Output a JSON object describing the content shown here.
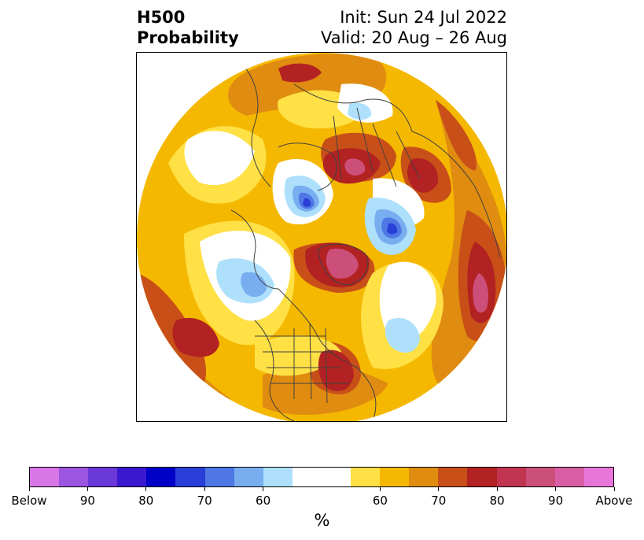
{
  "title": {
    "left_line1": "H500",
    "left_line2": "Probability",
    "right_line1": "Init: Sun 24 Jul 2022",
    "right_line2": "Valid: 20 Aug – 26 Aug"
  },
  "colorbar": {
    "unit": "%",
    "colors": [
      "#d876e8",
      "#9c55e0",
      "#6b38d8",
      "#3a18d0",
      "#0000c8",
      "#2a3ed8",
      "#4f78e4",
      "#78aef0",
      "#aee0fc",
      "#ffffff",
      "#ffffff",
      "#ffe045",
      "#f5b800",
      "#e08c10",
      "#c85018",
      "#b22222",
      "#c23550",
      "#cc4f7a",
      "#da5ea6",
      "#e876d8"
    ],
    "tick_labels": [
      "Below",
      "90",
      "80",
      "70",
      "60",
      "60",
      "70",
      "80",
      "90",
      "Above"
    ]
  },
  "map": {
    "projection": "north-polar-stereographic",
    "colors": {
      "base": "#f5b800",
      "light_yellow": "#ffe045",
      "orange": "#e08c10",
      "dark_orange": "#c85018",
      "red": "#b22222",
      "crimson": "#c23550",
      "pink": "#cc4f7a",
      "white": "#ffffff",
      "light_blue": "#aee0fc",
      "sky_blue": "#78aef0",
      "blue": "#4f78e4",
      "dark_blue": "#2a3ed8",
      "coast": "#404040"
    }
  }
}
